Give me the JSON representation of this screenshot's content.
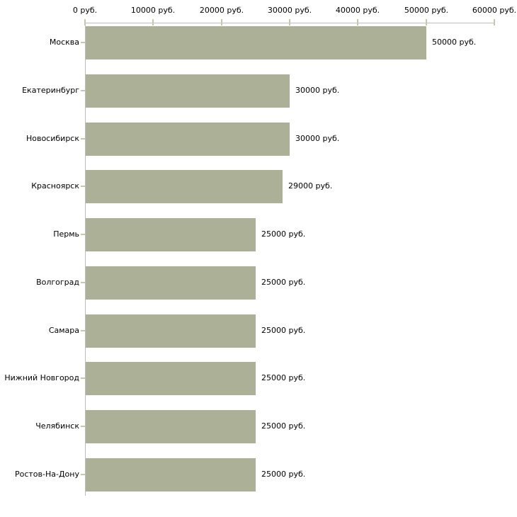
{
  "chart_data": {
    "type": "bar",
    "orientation": "horizontal",
    "title": "",
    "xlabel": "",
    "ylabel": "",
    "unit": "руб.",
    "xlim": [
      0,
      60000
    ],
    "grid": false,
    "legend": false,
    "x_axis_position": "top",
    "x_tick_values": [
      0,
      10000,
      20000,
      30000,
      40000,
      50000,
      60000
    ],
    "x_tick_labels": [
      "0 руб.",
      "10000 руб.",
      "20000 руб.",
      "30000 руб.",
      "40000 руб.",
      "50000 руб.",
      "60000 руб."
    ],
    "categories": [
      "Москва",
      "Екатеринбург",
      "Новосибирск",
      "Красноярск",
      "Пермь",
      "Волгоград",
      "Самара",
      "Нижний Новгород",
      "Челябинск",
      "Ростов-На-Дону"
    ],
    "values": [
      50000,
      30000,
      30000,
      29000,
      25000,
      25000,
      25000,
      25000,
      25000,
      25000
    ],
    "value_labels": [
      "50000 руб.",
      "30000 руб.",
      "30000 руб.",
      "29000 руб.",
      "25000 руб.",
      "25000 руб.",
      "25000 руб.",
      "25000 руб.",
      "25000 руб.",
      "25000 руб."
    ],
    "colors": {
      "bar": "#abb096",
      "tick": "#c6c9a8",
      "axis": "#bdbdbd",
      "text": "#000000",
      "background": "#ffffff"
    }
  }
}
